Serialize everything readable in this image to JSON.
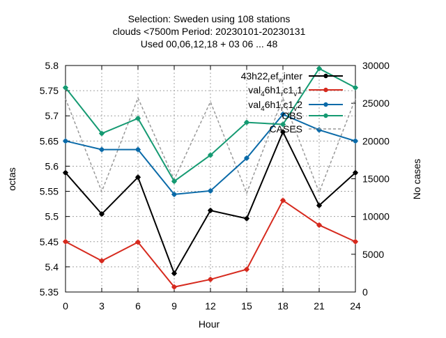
{
  "chart_data": {
    "type": "line",
    "title_lines": [
      "Selection: Sweden using   108 stations",
      "clouds <7500m   Period: 20230101-20230131",
      "Used  00,06,12,18  + 03 06 ... 48"
    ],
    "xlabel": "Hour",
    "ylabel": "octas",
    "y2label": "No cases",
    "x": [
      0,
      3,
      6,
      9,
      12,
      15,
      18,
      21,
      24
    ],
    "xlim": [
      0,
      24
    ],
    "ylim": [
      5.35,
      5.8
    ],
    "y2lim": [
      0,
      30000
    ],
    "xticks": [
      "0",
      "3",
      "6",
      "9",
      "12",
      "15",
      "18",
      "21",
      "24"
    ],
    "yticks": [
      "5.35",
      "5.4",
      "5.45",
      "5.5",
      "5.55",
      "5.6",
      "5.65",
      "5.7",
      "5.75",
      "5.8"
    ],
    "y2ticks": [
      "0",
      "5000",
      "10000",
      "15000",
      "20000",
      "25000",
      "30000"
    ],
    "grid": true,
    "legend_position": "top-right",
    "series": [
      {
        "legend": {
          "base": "43h22",
          "parts": [
            [
              "sub",
              "r"
            ],
            [
              "base",
              "ef"
            ],
            [
              "sub",
              "w"
            ],
            [
              "base",
              "inter"
            ]
          ]
        },
        "color": "#000000",
        "dash": "",
        "marker": true,
        "values": [
          5.587,
          5.505,
          5.578,
          5.387,
          5.512,
          5.496,
          5.668,
          5.522,
          5.587
        ]
      },
      {
        "legend": {
          "base": "val",
          "parts": [
            [
              "sub",
              "4"
            ],
            [
              "base",
              "6h1"
            ],
            [
              "sub",
              "r"
            ],
            [
              "base",
              "c1"
            ],
            [
              "sub",
              "v"
            ],
            [
              "base",
              "1"
            ]
          ]
        },
        "color": "#d62a1e",
        "dash": "",
        "marker": true,
        "values": [
          5.45,
          5.412,
          5.449,
          5.36,
          5.375,
          5.395,
          5.532,
          5.483,
          5.45
        ]
      },
      {
        "legend": {
          "base": "val",
          "parts": [
            [
              "sub",
              "4"
            ],
            [
              "base",
              "6h1"
            ],
            [
              "sub",
              "r"
            ],
            [
              "base",
              "c1"
            ],
            [
              "sub",
              "v"
            ],
            [
              "base",
              "2"
            ]
          ]
        },
        "color": "#0a6aa8",
        "dash": "",
        "marker": true,
        "values": [
          5.65,
          5.633,
          5.633,
          5.544,
          5.551,
          5.616,
          5.703,
          5.672,
          5.65
        ]
      },
      {
        "legend": {
          "base": "OBS",
          "parts": []
        },
        "color": "#159a72",
        "dash": "",
        "marker": true,
        "values": [
          5.756,
          5.665,
          5.695,
          5.57,
          5.622,
          5.687,
          5.683,
          5.794,
          5.756
        ]
      },
      {
        "legend": {
          "base": "CASES",
          "parts": []
        },
        "color": "#999999",
        "dash": "4,3",
        "marker": false,
        "axis": "y2",
        "values": [
          25600,
          13300,
          25700,
          14900,
          25200,
          13100,
          25700,
          13200,
          25600
        ]
      }
    ]
  }
}
